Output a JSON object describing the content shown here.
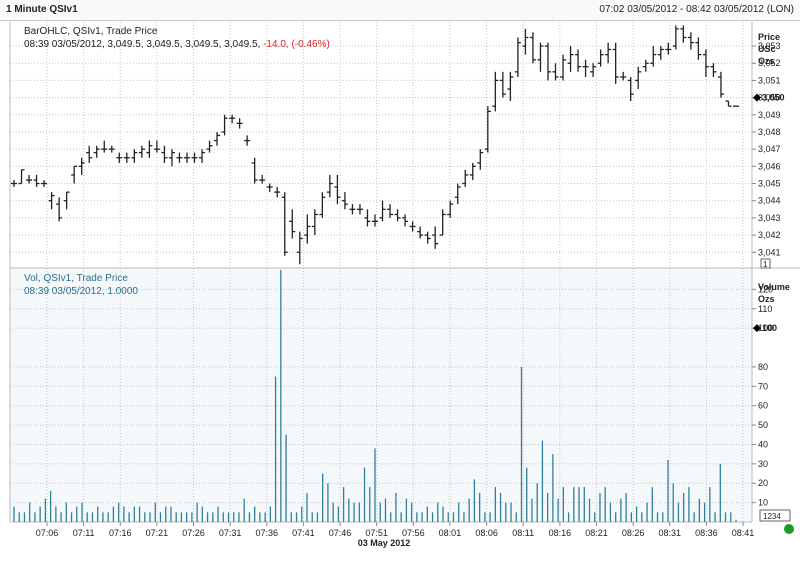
{
  "window": {
    "title": "1 Minute QSIv1",
    "time_range": "07:02 03/05/2012 - 08:42 03/05/2012 (LON)"
  },
  "price_panel": {
    "legend_line1": "BarOHLC, QSIv1, Trade Price",
    "legend_line2_prefix": "08:39 03/05/2012, 3,049.5, 3,049.5, 3,049.5, 3,049.5, ",
    "legend_change": "-14.0, (-0.46%)",
    "axis_title": [
      "Price",
      "USc",
      "Ozs"
    ],
    "last_price_label": "3,050",
    "pane_button": "1"
  },
  "volume_panel": {
    "legend_line1": "Vol, QSIv1, Trade Price",
    "legend_line2": "08:39 03/05/2012, 1.0000",
    "axis_title": [
      "Volume",
      "Ozs"
    ],
    "highlight_label": "100",
    "pane_button": "1234"
  },
  "x_axis": {
    "date_label": "03 May 2012"
  },
  "colors": {
    "bars": "#222222",
    "volume": "#2f7f9e",
    "grid": "#c6c6c6",
    "change": "#e02020",
    "status_dot": "#1a9a2a",
    "volume_bg": "#f5f8fb"
  },
  "chart_data": [
    {
      "type": "ohlc",
      "x_tick_labels": [
        "07:06",
        "07:11",
        "07:16",
        "07:21",
        "07:26",
        "07:31",
        "07:36",
        "07:41",
        "07:46",
        "07:51",
        "07:56",
        "08:01",
        "08:06",
        "08:11",
        "08:16",
        "08:21",
        "08:26",
        "08:31",
        "08:36",
        "08:41"
      ],
      "y_tick_labels": [
        "3,041",
        "3,042",
        "3,043",
        "3,044",
        "3,045",
        "3,046",
        "3,047",
        "3,048",
        "3,049",
        "3,050",
        "3,051",
        "3,052",
        "3,053"
      ],
      "ylim": [
        3040.2,
        3054.4
      ],
      "grid": true,
      "series": [
        {
          "ohlc": [
            [
              3045.0,
              3045.2,
              3044.8,
              3045.0
            ],
            [
              3045.0,
              3045.8,
              3045.0,
              3045.8
            ],
            [
              3045.2,
              3045.5,
              3045.0,
              3045.2
            ],
            [
              3045.2,
              3045.5,
              3044.8,
              3045.0
            ],
            [
              3045.0,
              3045.2,
              3044.8,
              3045.0
            ],
            [
              3044.0,
              3044.5,
              3043.5,
              3044.3
            ],
            [
              3043.8,
              3044.2,
              3042.8,
              3043.0
            ],
            [
              3044.0,
              3044.5,
              3043.5,
              3044.5
            ],
            [
              3045.5,
              3046.0,
              3045.0,
              3046.0
            ],
            [
              3046.0,
              3046.5,
              3045.5,
              3046.2
            ],
            [
              3046.8,
              3047.2,
              3046.2,
              3046.5
            ],
            [
              3046.8,
              3047.2,
              3046.5,
              3047.0
            ],
            [
              3047.0,
              3047.5,
              3046.8,
              3047.0
            ],
            [
              3047.0,
              3047.2,
              3046.8,
              3047.0
            ],
            [
              3046.5,
              3046.8,
              3046.2,
              3046.5
            ],
            [
              3046.5,
              3046.8,
              3046.2,
              3046.5
            ],
            [
              3046.5,
              3047.0,
              3046.2,
              3046.8
            ],
            [
              3046.8,
              3047.2,
              3046.5,
              3047.0
            ],
            [
              3046.8,
              3047.5,
              3046.5,
              3047.2
            ],
            [
              3047.0,
              3047.5,
              3046.8,
              3047.0
            ],
            [
              3046.8,
              3047.2,
              3046.2,
              3046.5
            ],
            [
              3046.5,
              3047.0,
              3046.0,
              3046.8
            ],
            [
              3046.5,
              3046.8,
              3046.2,
              3046.5
            ],
            [
              3046.5,
              3046.8,
              3046.2,
              3046.5
            ],
            [
              3046.5,
              3046.8,
              3046.2,
              3046.5
            ],
            [
              3046.5,
              3047.0,
              3046.2,
              3046.8
            ],
            [
              3047.0,
              3047.5,
              3046.8,
              3047.2
            ],
            [
              3047.5,
              3048.0,
              3047.2,
              3047.8
            ],
            [
              3048.0,
              3049.0,
              3047.8,
              3048.8
            ],
            [
              3048.8,
              3049.0,
              3048.5,
              3048.8
            ],
            [
              3048.5,
              3048.8,
              3048.2,
              3048.5
            ],
            [
              3047.5,
              3047.8,
              3047.2,
              3047.5
            ],
            [
              3046.2,
              3046.5,
              3045.0,
              3045.2
            ],
            [
              3045.2,
              3045.5,
              3045.0,
              3045.2
            ],
            [
              3044.8,
              3045.0,
              3044.5,
              3044.8
            ],
            [
              3044.5,
              3044.8,
              3044.2,
              3044.5
            ],
            [
              3044.2,
              3044.5,
              3040.8,
              3041.0
            ],
            [
              3042.8,
              3043.5,
              3041.8,
              3042.2
            ],
            [
              3041.0,
              3042.2,
              3040.3,
              3041.8
            ],
            [
              3042.0,
              3043.2,
              3041.5,
              3042.5
            ],
            [
              3042.5,
              3043.5,
              3042.0,
              3043.2
            ],
            [
              3043.2,
              3044.5,
              3043.0,
              3044.2
            ],
            [
              3044.5,
              3045.5,
              3044.2,
              3045.0
            ],
            [
              3044.8,
              3045.5,
              3043.8,
              3044.2
            ],
            [
              3044.0,
              3044.5,
              3043.5,
              3043.8
            ],
            [
              3043.5,
              3043.8,
              3043.2,
              3043.5
            ],
            [
              3043.5,
              3043.8,
              3043.2,
              3043.5
            ],
            [
              3043.0,
              3043.5,
              3042.5,
              3042.8
            ],
            [
              3042.8,
              3043.2,
              3042.5,
              3042.8
            ],
            [
              3043.0,
              3044.0,
              3042.8,
              3043.5
            ],
            [
              3043.5,
              3043.8,
              3043.0,
              3043.2
            ],
            [
              3043.2,
              3043.5,
              3042.8,
              3043.0
            ],
            [
              3043.0,
              3043.2,
              3042.5,
              3042.8
            ],
            [
              3042.5,
              3042.8,
              3042.2,
              3042.5
            ],
            [
              3042.2,
              3042.5,
              3041.8,
              3042.0
            ],
            [
              3042.0,
              3042.2,
              3041.5,
              3041.8
            ],
            [
              3042.0,
              3042.5,
              3041.2,
              3041.5
            ],
            [
              3042.0,
              3043.5,
              3042.0,
              3043.2
            ],
            [
              3043.2,
              3044.0,
              3043.0,
              3043.8
            ],
            [
              3044.2,
              3045.0,
              3043.8,
              3044.8
            ],
            [
              3045.0,
              3045.8,
              3044.8,
              3045.5
            ],
            [
              3045.5,
              3046.2,
              3045.2,
              3046.0
            ],
            [
              3046.2,
              3047.0,
              3045.8,
              3046.8
            ],
            [
              3047.0,
              3049.5,
              3046.8,
              3049.2
            ],
            [
              3049.5,
              3051.5,
              3049.2,
              3051.0
            ],
            [
              3051.0,
              3051.5,
              3050.0,
              3050.2
            ],
            [
              3050.5,
              3051.5,
              3049.8,
              3051.2
            ],
            [
              3051.5,
              3053.5,
              3051.2,
              3053.2
            ],
            [
              3053.0,
              3054.0,
              3052.5,
              3053.5
            ],
            [
              3053.5,
              3053.8,
              3052.0,
              3052.2
            ],
            [
              3052.2,
              3053.2,
              3051.5,
              3053.0
            ],
            [
              3053.0,
              3053.2,
              3051.0,
              3051.5
            ],
            [
              3051.5,
              3052.0,
              3051.0,
              3051.2
            ],
            [
              3051.2,
              3052.5,
              3051.0,
              3052.2
            ],
            [
              3052.0,
              3053.0,
              3051.5,
              3052.5
            ],
            [
              3052.5,
              3052.8,
              3051.5,
              3051.8
            ],
            [
              3051.8,
              3052.2,
              3051.2,
              3051.8
            ],
            [
              3051.5,
              3052.0,
              3051.2,
              3051.8
            ],
            [
              3052.0,
              3052.8,
              3051.8,
              3052.5
            ],
            [
              3052.5,
              3053.2,
              3052.0,
              3052.8
            ],
            [
              3052.8,
              3053.2,
              3050.8,
              3051.2
            ],
            [
              3051.2,
              3051.5,
              3051.0,
              3051.2
            ],
            [
              3051.0,
              3051.2,
              3049.8,
              3050.2
            ],
            [
              3051.0,
              3051.8,
              3050.5,
              3051.5
            ],
            [
              3051.8,
              3052.2,
              3051.5,
              3052.0
            ],
            [
              3052.0,
              3053.0,
              3051.8,
              3052.5
            ],
            [
              3052.5,
              3053.0,
              3052.2,
              3052.8
            ],
            [
              3052.8,
              3053.2,
              3052.5,
              3052.8
            ],
            [
              3053.0,
              3054.2,
              3052.8,
              3054.0
            ],
            [
              3054.0,
              3054.2,
              3053.2,
              3053.5
            ],
            [
              3053.5,
              3053.8,
              3052.8,
              3053.2
            ],
            [
              3053.2,
              3053.5,
              3052.2,
              3052.5
            ],
            [
              3052.5,
              3052.8,
              3051.2,
              3051.8
            ],
            [
              3051.8,
              3052.0,
              3051.2,
              3051.5
            ],
            [
              3051.2,
              3051.5,
              3050.0,
              3050.2
            ],
            [
              3049.8,
              3049.8,
              3049.5,
              3049.5
            ],
            [
              3049.5,
              3049.5,
              3049.5,
              3049.5
            ]
          ]
        }
      ]
    },
    {
      "type": "bar",
      "y_tick_labels": [
        "10",
        "20",
        "30",
        "40",
        "50",
        "60",
        "70",
        "80",
        "100",
        "110",
        "120"
      ],
      "ylim": [
        0,
        130
      ],
      "grid": true,
      "series": [
        {
          "values": [
            8,
            5,
            5,
            10,
            5,
            8,
            12,
            16,
            8,
            5,
            10,
            5,
            8,
            10,
            5,
            5,
            8,
            5,
            5,
            8,
            10,
            8,
            5,
            8,
            8,
            5,
            5,
            10,
            5,
            8,
            8,
            5,
            5,
            5,
            5,
            10,
            8,
            5,
            5,
            8,
            5,
            5,
            5,
            5,
            12,
            5,
            8,
            5,
            5,
            8,
            75,
            130,
            45,
            5,
            5,
            8,
            15,
            5,
            5,
            25,
            20,
            10,
            8,
            18,
            12,
            10,
            10,
            28,
            18,
            38,
            10,
            12,
            5,
            15,
            5,
            12,
            10,
            5,
            5,
            8,
            5,
            10,
            8,
            5,
            5,
            10,
            5,
            12,
            22,
            15,
            5,
            5,
            18,
            15,
            10,
            10,
            5,
            80,
            28,
            12,
            20,
            42,
            15,
            35,
            12,
            18,
            5,
            18,
            18,
            18,
            12,
            5,
            15,
            18,
            10,
            5,
            12,
            15,
            5,
            8,
            5,
            10,
            18,
            5,
            5,
            32,
            20,
            10,
            15,
            18,
            5,
            12,
            10,
            18,
            5,
            30,
            5,
            5,
            1
          ]
        }
      ]
    }
  ]
}
